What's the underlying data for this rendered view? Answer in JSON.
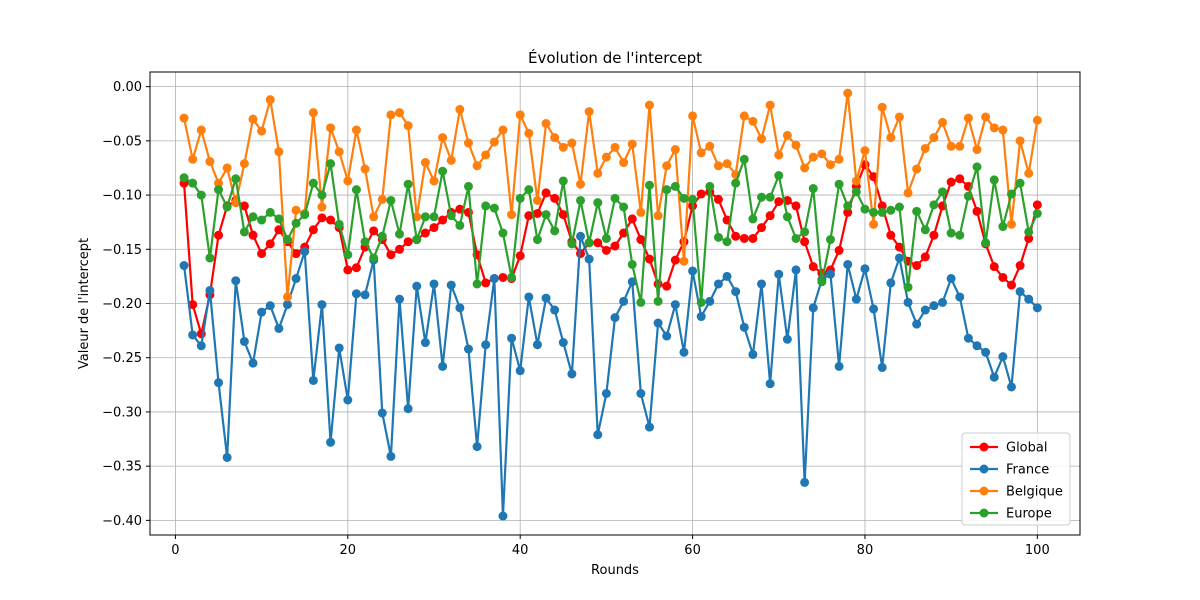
{
  "chart_data": {
    "type": "line",
    "title": "Évolution de l'intercept",
    "xlabel": "Rounds",
    "ylabel": "Valeur de l'intercept",
    "xlim": [
      -2.95,
      104.95
    ],
    "ylim": [
      -0.4135,
      0.0135
    ],
    "x_ticks": [
      0,
      20,
      40,
      60,
      80,
      100
    ],
    "x_tick_labels": [
      "0",
      "20",
      "40",
      "60",
      "80",
      "100"
    ],
    "y_ticks": [
      0.0,
      -0.05,
      -0.1,
      -0.15,
      -0.2,
      -0.25,
      -0.3,
      -0.35,
      -0.4
    ],
    "y_tick_labels": [
      "0.00",
      "−0.05",
      "−0.10",
      "−0.15",
      "−0.20",
      "−0.25",
      "−0.30",
      "−0.35",
      "−0.40"
    ],
    "grid": true,
    "legend_position": "lower-right",
    "x": [
      1,
      2,
      3,
      4,
      5,
      6,
      7,
      8,
      9,
      10,
      11,
      12,
      13,
      14,
      15,
      16,
      17,
      18,
      19,
      20,
      21,
      22,
      23,
      24,
      25,
      26,
      27,
      28,
      29,
      30,
      31,
      32,
      33,
      34,
      35,
      36,
      37,
      38,
      39,
      40,
      41,
      42,
      43,
      44,
      45,
      46,
      47,
      48,
      49,
      50,
      51,
      52,
      53,
      54,
      55,
      56,
      57,
      58,
      59,
      60,
      61,
      62,
      63,
      64,
      65,
      66,
      67,
      68,
      69,
      70,
      71,
      72,
      73,
      74,
      75,
      76,
      77,
      78,
      79,
      80,
      81,
      82,
      83,
      84,
      85,
      86,
      87,
      88,
      89,
      90,
      91,
      92,
      93,
      94,
      95,
      96,
      97,
      98,
      99,
      100
    ],
    "series": [
      {
        "name": "Global",
        "color": "#ff0000",
        "values": [
          -0.089,
          -0.201,
          -0.228,
          -0.192,
          -0.137,
          -0.11,
          -0.105,
          -0.11,
          -0.137,
          -0.154,
          -0.145,
          -0.132,
          -0.143,
          -0.154,
          -0.148,
          -0.132,
          -0.121,
          -0.123,
          -0.13,
          -0.169,
          -0.167,
          -0.148,
          -0.133,
          -0.141,
          -0.155,
          -0.15,
          -0.143,
          -0.141,
          -0.135,
          -0.13,
          -0.123,
          -0.116,
          -0.113,
          -0.116,
          -0.155,
          -0.181,
          -0.177,
          -0.176,
          -0.177,
          -0.156,
          -0.119,
          -0.117,
          -0.098,
          -0.103,
          -0.118,
          -0.143,
          -0.154,
          -0.144,
          -0.144,
          -0.151,
          -0.147,
          -0.135,
          -0.122,
          -0.141,
          -0.159,
          -0.182,
          -0.184,
          -0.16,
          -0.143,
          -0.11,
          -0.099,
          -0.097,
          -0.104,
          -0.123,
          -0.138,
          -0.14,
          -0.14,
          -0.13,
          -0.119,
          -0.106,
          -0.105,
          -0.11,
          -0.143,
          -0.166,
          -0.172,
          -0.169,
          -0.151,
          -0.116,
          -0.092,
          -0.072,
          -0.083,
          -0.11,
          -0.137,
          -0.148,
          -0.161,
          -0.165,
          -0.157,
          -0.137,
          -0.11,
          -0.088,
          -0.085,
          -0.092,
          -0.115,
          -0.145,
          -0.166,
          -0.176,
          -0.183,
          -0.165,
          -0.14,
          -0.109
        ]
      },
      {
        "name": "France",
        "color": "#1f77b4",
        "values": [
          -0.165,
          -0.229,
          -0.239,
          -0.188,
          -0.273,
          -0.342,
          -0.179,
          -0.235,
          -0.255,
          -0.208,
          -0.202,
          -0.223,
          -0.201,
          -0.177,
          -0.152,
          -0.271,
          -0.201,
          -0.328,
          -0.241,
          -0.289,
          -0.191,
          -0.192,
          -0.16,
          -0.301,
          -0.341,
          -0.196,
          -0.297,
          -0.184,
          -0.236,
          -0.182,
          -0.258,
          -0.183,
          -0.204,
          -0.242,
          -0.332,
          -0.238,
          -0.177,
          -0.396,
          -0.232,
          -0.262,
          -0.194,
          -0.238,
          -0.195,
          -0.206,
          -0.236,
          -0.265,
          -0.138,
          -0.159,
          -0.321,
          -0.283,
          -0.213,
          -0.198,
          -0.18,
          -0.283,
          -0.314,
          -0.218,
          -0.23,
          -0.201,
          -0.245,
          -0.17,
          -0.212,
          -0.198,
          -0.182,
          -0.175,
          -0.189,
          -0.222,
          -0.247,
          -0.182,
          -0.274,
          -0.173,
          -0.233,
          -0.169,
          -0.365,
          -0.204,
          -0.178,
          -0.173,
          -0.258,
          -0.164,
          -0.196,
          -0.168,
          -0.205,
          -0.259,
          -0.181,
          -0.158,
          -0.199,
          -0.219,
          -0.206,
          -0.202,
          -0.199,
          -0.177,
          -0.194,
          -0.232,
          -0.239,
          -0.245,
          -0.268,
          -0.249,
          -0.277,
          -0.189,
          -0.196,
          -0.204
        ]
      },
      {
        "name": "Belgique",
        "color": "#ff7f0e",
        "values": [
          -0.029,
          -0.067,
          -0.04,
          -0.069,
          -0.089,
          -0.075,
          -0.107,
          -0.071,
          -0.03,
          -0.041,
          -0.012,
          -0.06,
          -0.194,
          -0.114,
          -0.117,
          -0.024,
          -0.111,
          -0.038,
          -0.06,
          -0.087,
          -0.04,
          -0.076,
          -0.12,
          -0.104,
          -0.026,
          -0.024,
          -0.036,
          -0.12,
          -0.07,
          -0.087,
          -0.047,
          -0.068,
          -0.021,
          -0.052,
          -0.073,
          -0.063,
          -0.051,
          -0.04,
          -0.118,
          -0.026,
          -0.043,
          -0.105,
          -0.034,
          -0.047,
          -0.056,
          -0.052,
          -0.09,
          -0.023,
          -0.08,
          -0.065,
          -0.056,
          -0.07,
          -0.053,
          -0.116,
          -0.017,
          -0.119,
          -0.073,
          -0.058,
          -0.161,
          -0.027,
          -0.061,
          -0.055,
          -0.073,
          -0.071,
          -0.081,
          -0.027,
          -0.032,
          -0.048,
          -0.017,
          -0.063,
          -0.045,
          -0.054,
          -0.075,
          -0.065,
          -0.062,
          -0.072,
          -0.067,
          -0.006,
          -0.087,
          -0.059,
          -0.127,
          -0.019,
          -0.047,
          -0.028,
          -0.098,
          -0.076,
          -0.057,
          -0.047,
          -0.033,
          -0.055,
          -0.055,
          -0.029,
          -0.058,
          -0.028,
          -0.038,
          -0.04,
          -0.127,
          -0.05,
          -0.08,
          -0.031
        ]
      },
      {
        "name": "Europe",
        "color": "#2ca02c",
        "values": [
          -0.084,
          -0.089,
          -0.1,
          -0.158,
          -0.095,
          -0.111,
          -0.085,
          -0.134,
          -0.12,
          -0.123,
          -0.116,
          -0.122,
          -0.141,
          -0.126,
          -0.118,
          -0.089,
          -0.1,
          -0.071,
          -0.127,
          -0.155,
          -0.095,
          -0.143,
          -0.158,
          -0.138,
          -0.105,
          -0.136,
          -0.09,
          -0.141,
          -0.12,
          -0.12,
          -0.078,
          -0.119,
          -0.128,
          -0.092,
          -0.182,
          -0.11,
          -0.112,
          -0.135,
          -0.176,
          -0.103,
          -0.095,
          -0.141,
          -0.118,
          -0.133,
          -0.087,
          -0.145,
          -0.105,
          -0.144,
          -0.107,
          -0.14,
          -0.103,
          -0.111,
          -0.164,
          -0.199,
          -0.091,
          -0.198,
          -0.095,
          -0.092,
          -0.103,
          -0.104,
          -0.199,
          -0.092,
          -0.139,
          -0.143,
          -0.089,
          -0.067,
          -0.122,
          -0.102,
          -0.102,
          -0.082,
          -0.12,
          -0.14,
          -0.134,
          -0.094,
          -0.18,
          -0.141,
          -0.09,
          -0.11,
          -0.097,
          -0.113,
          -0.116,
          -0.116,
          -0.114,
          -0.111,
          -0.185,
          -0.115,
          -0.132,
          -0.109,
          -0.097,
          -0.135,
          -0.137,
          -0.101,
          -0.074,
          -0.144,
          -0.086,
          -0.129,
          -0.099,
          -0.089,
          -0.134,
          -0.117
        ]
      }
    ]
  }
}
